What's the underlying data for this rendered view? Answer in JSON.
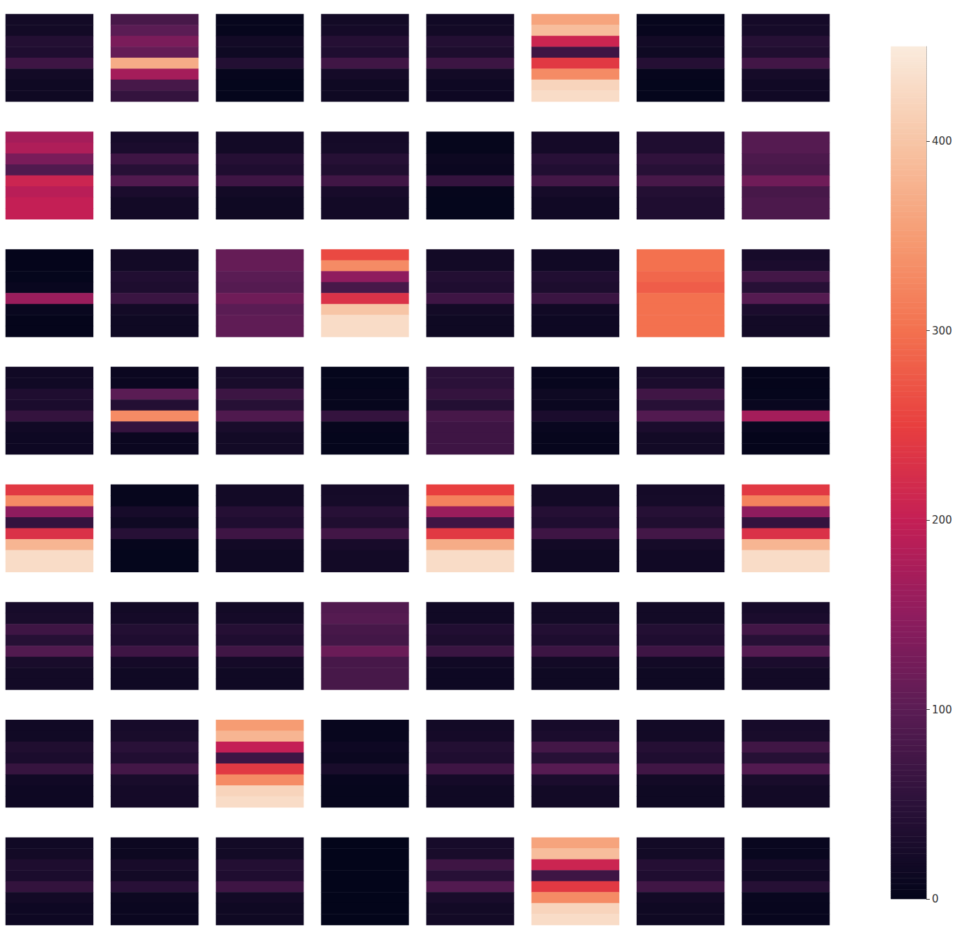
{
  "chart_data": {
    "type": "heatmap",
    "tick_labels": false,
    "panels": [
      [
        20,
        20,
        40,
        35,
        70,
        20,
        15,
        15
      ],
      [
        80,
        100,
        130,
        110,
        370,
        170,
        80,
        60
      ],
      [
        5,
        5,
        20,
        15,
        40,
        5,
        3,
        3
      ],
      [
        20,
        22,
        42,
        35,
        72,
        22,
        15,
        15
      ],
      [
        18,
        20,
        40,
        33,
        68,
        20,
        14,
        14
      ],
      [
        360,
        390,
        210,
        70,
        240,
        330,
        420,
        430
      ],
      [
        5,
        6,
        20,
        15,
        42,
        5,
        3,
        3
      ],
      [
        22,
        24,
        44,
        36,
        74,
        24,
        18,
        18
      ],
      [
        170,
        180,
        130,
        90,
        210,
        190,
        200,
        200
      ],
      [
        25,
        30,
        70,
        45,
        90,
        30,
        20,
        20
      ],
      [
        20,
        20,
        42,
        35,
        70,
        20,
        15,
        15
      ],
      [
        22,
        24,
        44,
        36,
        72,
        26,
        20,
        20
      ],
      [
        4,
        4,
        12,
        10,
        60,
        4,
        3,
        3
      ],
      [
        22,
        22,
        46,
        38,
        76,
        24,
        18,
        18
      ],
      [
        35,
        35,
        55,
        45,
        80,
        40,
        35,
        35
      ],
      [
        95,
        95,
        85,
        80,
        120,
        80,
        85,
        85
      ],
      [
        2,
        2,
        3,
        8,
        160,
        8,
        2,
        2
      ],
      [
        20,
        20,
        38,
        34,
        66,
        20,
        15,
        15
      ],
      [
        110,
        110,
        100,
        95,
        120,
        100,
        105,
        105
      ],
      [
        260,
        330,
        150,
        80,
        230,
        400,
        430,
        430
      ],
      [
        20,
        20,
        40,
        35,
        70,
        20,
        15,
        15
      ],
      [
        18,
        18,
        38,
        32,
        66,
        18,
        14,
        14
      ],
      [
        300,
        300,
        290,
        280,
        300,
        300,
        300,
        300
      ],
      [
        25,
        30,
        75,
        45,
        95,
        30,
        20,
        20
      ],
      [
        18,
        18,
        35,
        30,
        60,
        18,
        14,
        14
      ],
      [
        10,
        10,
        100,
        40,
        330,
        60,
        10,
        10
      ],
      [
        25,
        28,
        68,
        44,
        88,
        28,
        20,
        20
      ],
      [
        3,
        3,
        5,
        5,
        60,
        5,
        3,
        3
      ],
      [
        50,
        50,
        60,
        40,
        80,
        70,
        70,
        70
      ],
      [
        6,
        6,
        15,
        10,
        30,
        8,
        5,
        5
      ],
      [
        25,
        30,
        72,
        45,
        92,
        30,
        20,
        20
      ],
      [
        2,
        2,
        3,
        8,
        170,
        8,
        2,
        2
      ],
      [
        240,
        330,
        150,
        60,
        230,
        380,
        430,
        430
      ],
      [
        5,
        5,
        25,
        15,
        45,
        5,
        3,
        3
      ],
      [
        20,
        20,
        42,
        35,
        70,
        20,
        15,
        15
      ],
      [
        22,
        24,
        45,
        36,
        74,
        26,
        20,
        20
      ],
      [
        250,
        320,
        160,
        70,
        240,
        370,
        430,
        430
      ],
      [
        20,
        20,
        42,
        35,
        70,
        20,
        15,
        15
      ],
      [
        22,
        24,
        44,
        36,
        76,
        24,
        18,
        18
      ],
      [
        240,
        320,
        150,
        60,
        230,
        380,
        430,
        430
      ],
      [
        25,
        28,
        70,
        44,
        90,
        28,
        20,
        20
      ],
      [
        20,
        22,
        40,
        35,
        70,
        22,
        16,
        16
      ],
      [
        20,
        22,
        42,
        35,
        72,
        22,
        16,
        16
      ],
      [
        90,
        95,
        80,
        75,
        115,
        80,
        80,
        80
      ],
      [
        18,
        18,
        38,
        32,
        66,
        18,
        14,
        14
      ],
      [
        20,
        20,
        40,
        34,
        68,
        20,
        15,
        15
      ],
      [
        20,
        20,
        40,
        35,
        70,
        20,
        15,
        15
      ],
      [
        25,
        30,
        74,
        45,
        94,
        30,
        20,
        20
      ],
      [
        18,
        18,
        36,
        30,
        62,
        18,
        14,
        14
      ],
      [
        25,
        28,
        48,
        38,
        76,
        28,
        22,
        22
      ],
      [
        350,
        380,
        200,
        70,
        240,
        330,
        420,
        430
      ],
      [
        6,
        6,
        14,
        10,
        28,
        6,
        5,
        5
      ],
      [
        20,
        22,
        40,
        35,
        70,
        22,
        16,
        16
      ],
      [
        25,
        30,
        76,
        45,
        96,
        30,
        20,
        20
      ],
      [
        20,
        20,
        42,
        35,
        72,
        20,
        15,
        15
      ],
      [
        25,
        28,
        72,
        44,
        92,
        28,
        20,
        20
      ],
      [
        18,
        20,
        34,
        30,
        58,
        20,
        14,
        14
      ],
      [
        12,
        12,
        26,
        20,
        46,
        12,
        10,
        10
      ],
      [
        20,
        20,
        40,
        35,
        70,
        20,
        15,
        15
      ],
      [
        0,
        0,
        0,
        0,
        0,
        0,
        0,
        0
      ],
      [
        25,
        28,
        70,
        45,
        92,
        28,
        20,
        20
      ],
      [
        360,
        390,
        210,
        70,
        240,
        330,
        420,
        430
      ],
      [
        20,
        20,
        42,
        35,
        72,
        20,
        15,
        15
      ],
      [
        8,
        8,
        22,
        16,
        44,
        8,
        6,
        6
      ]
    ],
    "colorbar": {
      "lim": [
        0,
        450
      ],
      "ticks": [
        0,
        100,
        200,
        300,
        400
      ]
    }
  }
}
